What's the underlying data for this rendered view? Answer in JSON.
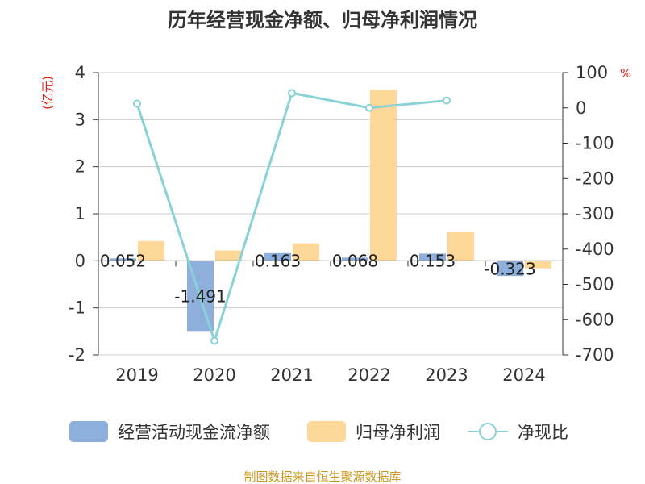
{
  "chart_data": {
    "type": "bar",
    "title": "历年经营现金净额、归母净利润情况",
    "categories": [
      "2019",
      "2020",
      "2021",
      "2022",
      "2023",
      "2024"
    ],
    "left_axis": {
      "unit": "(亿元)",
      "ylim": [
        -2,
        4
      ],
      "ticks": [
        "4",
        "3",
        "2",
        "1",
        "0",
        "-1",
        "-2"
      ],
      "tick_values": [
        4,
        3,
        2,
        1,
        0,
        -1,
        -2
      ]
    },
    "right_axis": {
      "unit": "%",
      "ylim": [
        -700,
        100
      ],
      "ticks": [
        "100",
        "0",
        "-100",
        "-200",
        "-300",
        "-400",
        "-500",
        "-600",
        "-700"
      ],
      "tick_values": [
        100,
        0,
        -100,
        -200,
        -300,
        -400,
        -500,
        -600,
        -700
      ]
    },
    "series": [
      {
        "name": "经营活动现金流净额",
        "type": "bar",
        "axis": "left",
        "color": "#8eaedb",
        "values": [
          0.052,
          -1.491,
          0.163,
          0.068,
          0.153,
          -0.323
        ],
        "labels": [
          "0.052",
          "-1.491",
          "0.163",
          "0.068",
          "0.153",
          "-0.323"
        ]
      },
      {
        "name": "归母净利润",
        "type": "bar",
        "axis": "left",
        "color": "#fdd899",
        "values": [
          0.42,
          0.22,
          0.37,
          3.63,
          0.61,
          -0.16
        ]
      },
      {
        "name": "净现比",
        "type": "line",
        "axis": "right",
        "color": "#88d2d8",
        "values": [
          12,
          -660,
          42,
          0,
          21,
          null
        ]
      }
    ],
    "grid": true,
    "legend": "bottom"
  },
  "source": "制图数据来自恒生聚源数据库"
}
